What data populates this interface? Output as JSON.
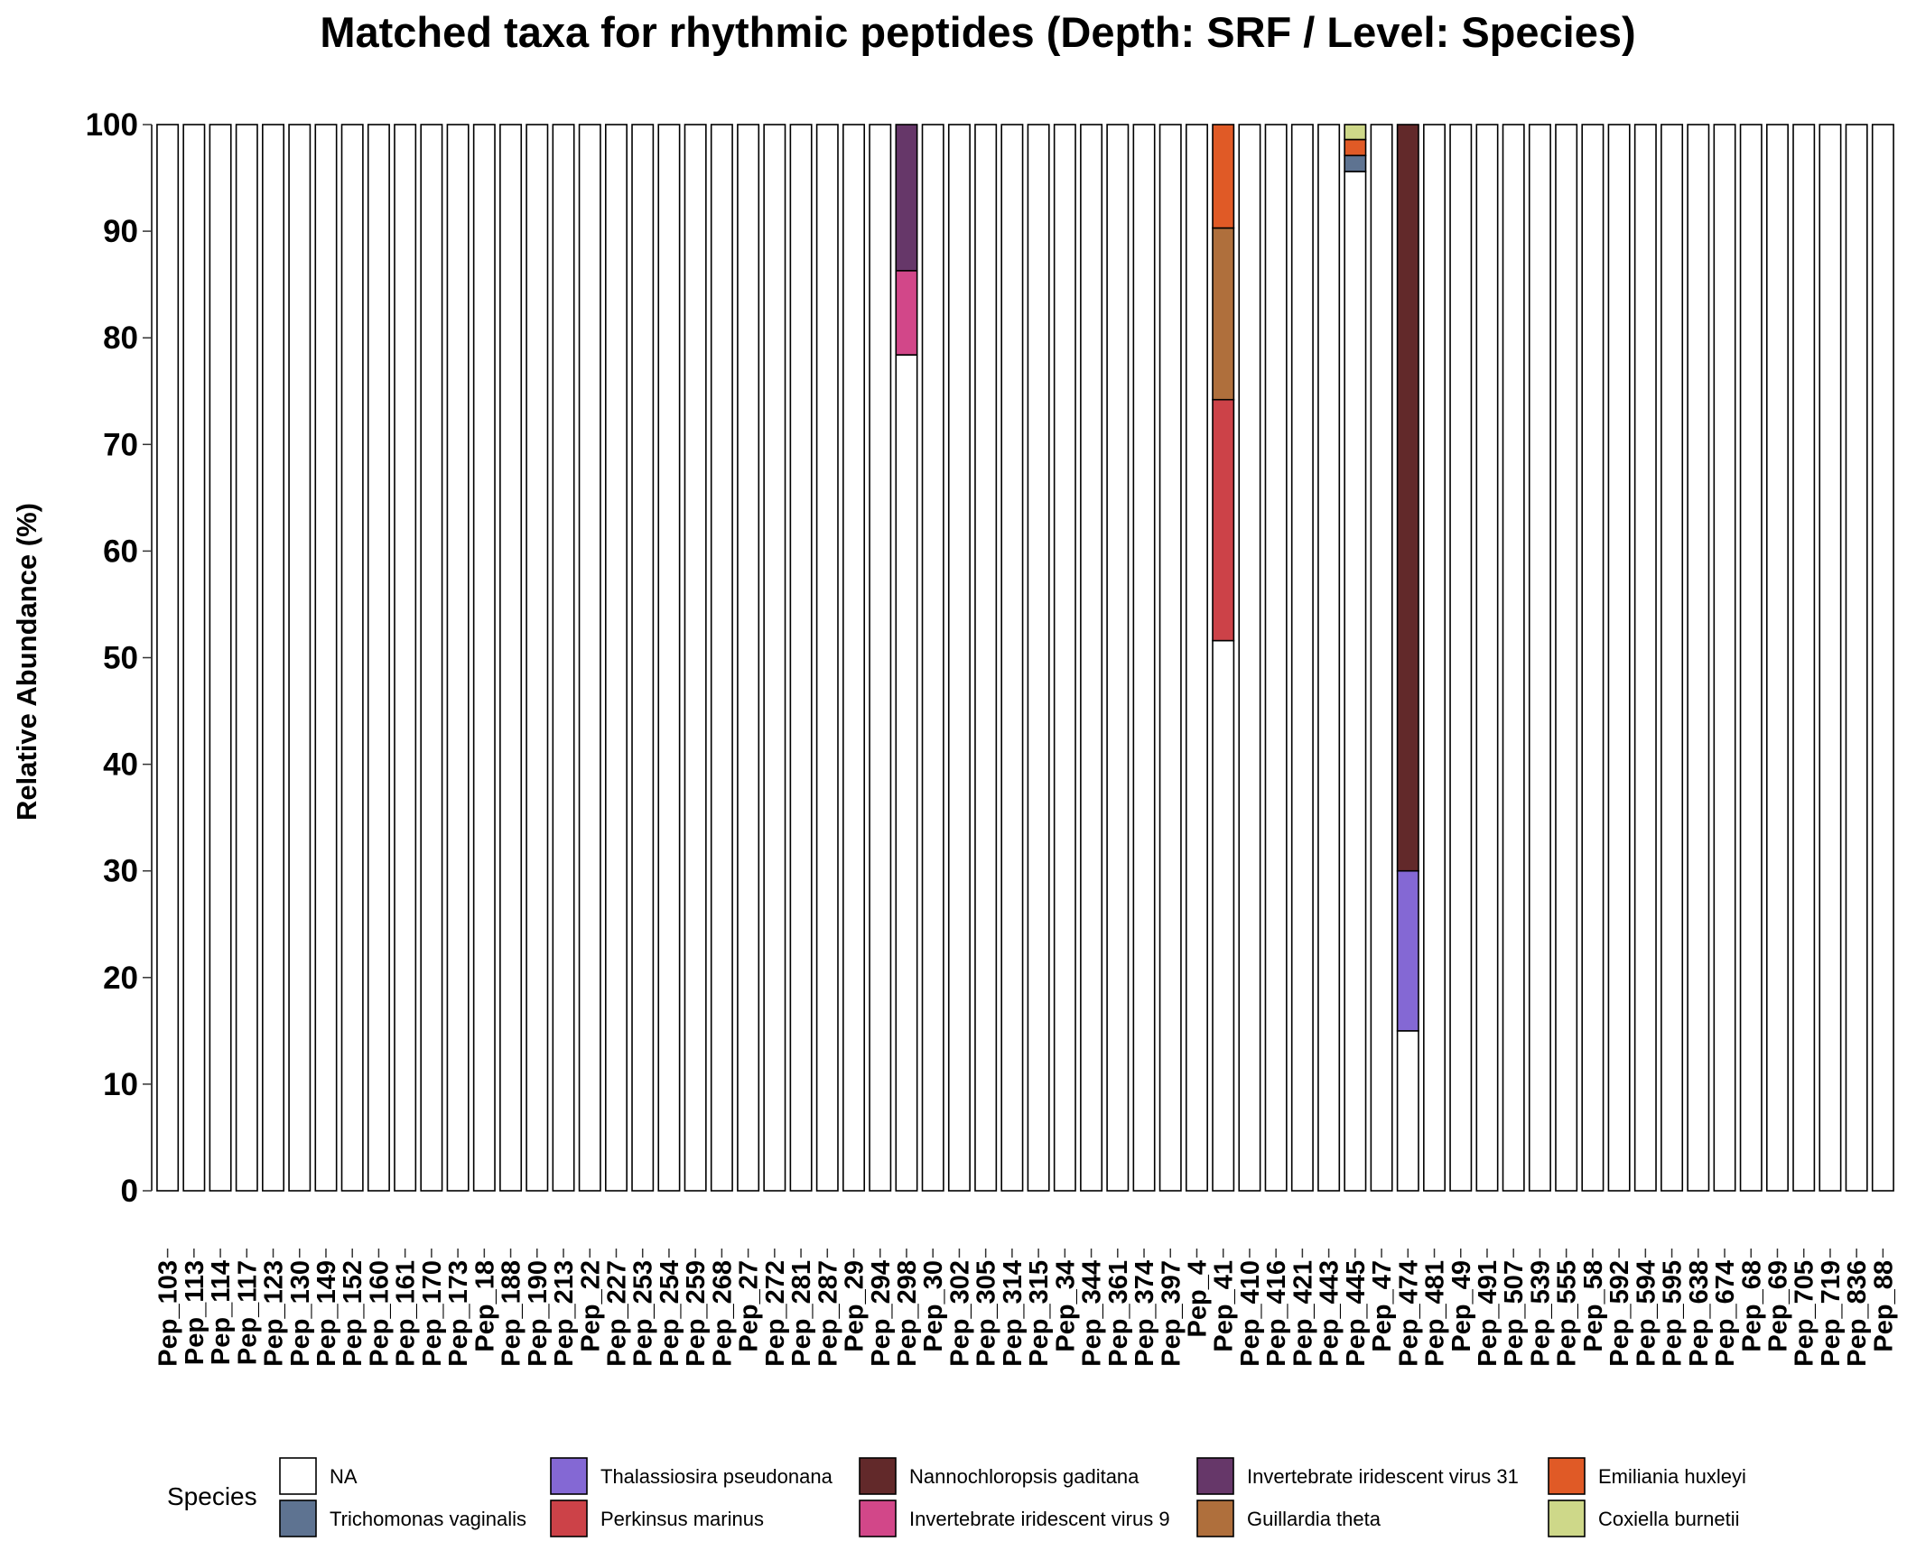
{
  "chart_data": {
    "type": "bar",
    "stacked": true,
    "title": "Matched taxa for rhythmic peptides (Depth: SRF / Level: Species)",
    "xlabel": "",
    "ylabel": "Relative Abundance (%)",
    "ylim": [
      0,
      100
    ],
    "yticks": [
      0,
      10,
      20,
      30,
      40,
      50,
      60,
      70,
      80,
      90,
      100
    ],
    "grid": false,
    "legend_position": "bottom",
    "legend_title": "Species",
    "categories": [
      "Pep_103",
      "Pep_113",
      "Pep_114",
      "Pep_117",
      "Pep_123",
      "Pep_130",
      "Pep_149",
      "Pep_152",
      "Pep_160",
      "Pep_161",
      "Pep_170",
      "Pep_173",
      "Pep_18",
      "Pep_188",
      "Pep_190",
      "Pep_213",
      "Pep_22",
      "Pep_227",
      "Pep_253",
      "Pep_254",
      "Pep_259",
      "Pep_268",
      "Pep_27",
      "Pep_272",
      "Pep_281",
      "Pep_287",
      "Pep_29",
      "Pep_294",
      "Pep_298",
      "Pep_30",
      "Pep_302",
      "Pep_305",
      "Pep_314",
      "Pep_315",
      "Pep_34",
      "Pep_344",
      "Pep_361",
      "Pep_374",
      "Pep_397",
      "Pep_4",
      "Pep_41",
      "Pep_410",
      "Pep_416",
      "Pep_421",
      "Pep_443",
      "Pep_445",
      "Pep_47",
      "Pep_474",
      "Pep_481",
      "Pep_49",
      "Pep_491",
      "Pep_507",
      "Pep_539",
      "Pep_555",
      "Pep_58",
      "Pep_592",
      "Pep_594",
      "Pep_595",
      "Pep_638",
      "Pep_674",
      "Pep_68",
      "Pep_69",
      "Pep_705",
      "Pep_719",
      "Pep_836",
      "Pep_88"
    ],
    "legend": [
      {
        "name": "NA",
        "color": "#FFFFFF"
      },
      {
        "name": "Trichomonas vaginalis",
        "color": "#5E7391"
      },
      {
        "name": "Thalassiosira pseudonana",
        "color": "#8468D4"
      },
      {
        "name": "Perkinsus marinus",
        "color": "#CC4248"
      },
      {
        "name": "Nannochloropsis gaditana",
        "color": "#62292A"
      },
      {
        "name": "Invertebrate iridescent virus 9",
        "color": "#D24789"
      },
      {
        "name": "Invertebrate iridescent virus 31",
        "color": "#663769"
      },
      {
        "name": "Guillardia theta",
        "color": "#AF6F3C"
      },
      {
        "name": "Emiliania huxleyi",
        "color": "#E05A26"
      },
      {
        "name": "Coxiella burnetii",
        "color": "#CED889"
      }
    ],
    "default_stack": [
      {
        "name": "NA",
        "value": 100
      }
    ],
    "stacks": {
      "Pep_298": [
        {
          "name": "NA",
          "value": 78.4
        },
        {
          "name": "Invertebrate iridescent virus 9",
          "value": 7.9
        },
        {
          "name": "Invertebrate iridescent virus 31",
          "value": 13.7
        }
      ],
      "Pep_41": [
        {
          "name": "NA",
          "value": 51.6
        },
        {
          "name": "Perkinsus marinus",
          "value": 22.6
        },
        {
          "name": "Guillardia theta",
          "value": 16.1
        },
        {
          "name": "Emiliania huxleyi",
          "value": 9.7
        }
      ],
      "Pep_445": [
        {
          "name": "NA",
          "value": 95.6
        },
        {
          "name": "Trichomonas vaginalis",
          "value": 1.5
        },
        {
          "name": "Emiliania huxleyi",
          "value": 1.5
        },
        {
          "name": "Coxiella burnetii",
          "value": 1.4
        }
      ],
      "Pep_474": [
        {
          "name": "NA",
          "value": 15.0
        },
        {
          "name": "Thalassiosira pseudonana",
          "value": 15.0
        },
        {
          "name": "Nannochloropsis gaditana",
          "value": 70.0
        }
      ]
    }
  }
}
